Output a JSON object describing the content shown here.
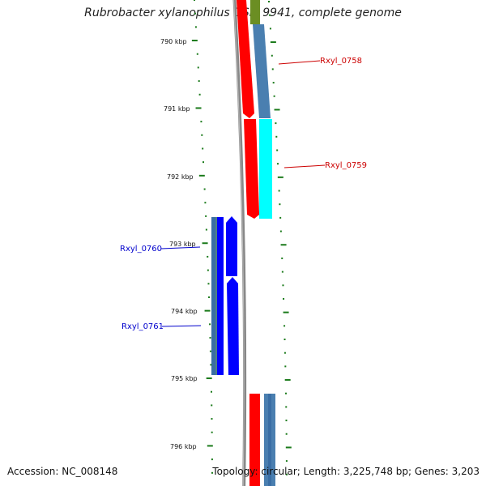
{
  "title": "Rubrobacter xylanophilus DSM 9941, complete genome",
  "accession": "Accession: NC_008148",
  "topology": "Topology: circular; Length: 3,225,748 bp; Genes: 3,203",
  "ticks": [
    "790 kbp",
    "791 kbp",
    "792 kbp",
    "793 kbp",
    "794 kbp",
    "795 kbp",
    "796 kbp"
  ],
  "genes": [
    {
      "label": "Rxyl_0758",
      "color": "#cc0000"
    },
    {
      "label": "Rxyl_0759",
      "color": "#cc0000"
    },
    {
      "label": "Rxyl_0760",
      "color": "#0000cc"
    },
    {
      "label": "Rxyl_0761",
      "color": "#0000cc"
    }
  ],
  "colors": {
    "forward_cds": "#ff0000",
    "reverse_cds": "#0000ff",
    "forward_band": "#4a7fb0",
    "reverse_band": "#3a6ea5",
    "highlight_band": "#00ffff",
    "backbone": "#888888",
    "top_band": "#6b8e23",
    "tick": "#1a7a1a"
  }
}
